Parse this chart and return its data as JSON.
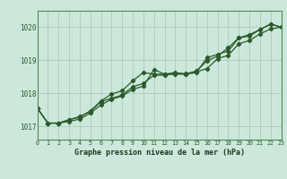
{
  "title": "Graphe pression niveau de la mer (hPa)",
  "bg_color": "#cce8dc",
  "plot_bg_color": "#cce8dc",
  "grid_color": "#aaccbb",
  "line_color": "#2a5a2a",
  "hours": [
    0,
    1,
    2,
    3,
    4,
    5,
    6,
    7,
    8,
    9,
    10,
    11,
    12,
    13,
    14,
    15,
    16,
    17,
    18,
    19,
    20,
    21,
    22,
    23
  ],
  "line1": [
    1017.55,
    1017.1,
    1017.1,
    1017.2,
    1017.3,
    1017.45,
    1017.75,
    1017.85,
    1017.95,
    1018.2,
    1018.3,
    1018.55,
    1018.55,
    1018.6,
    1018.6,
    1018.65,
    1018.75,
    1019.05,
    1019.15,
    1019.5,
    1019.6,
    1019.8,
    1019.95,
    1020.0
  ],
  "line2": [
    1017.55,
    1017.1,
    1017.1,
    1017.15,
    1017.22,
    1017.4,
    1017.65,
    1017.82,
    1017.92,
    1018.12,
    1018.22,
    1018.72,
    1018.58,
    1018.58,
    1018.58,
    1018.63,
    1019.08,
    1019.18,
    1019.28,
    1019.68,
    1019.73,
    1019.93,
    1020.1,
    1020.0
  ],
  "line3": [
    1017.55,
    1017.1,
    1017.1,
    1017.2,
    1017.28,
    1017.47,
    1017.77,
    1017.98,
    1018.08,
    1018.38,
    1018.63,
    1018.58,
    1018.58,
    1018.63,
    1018.58,
    1018.68,
    1018.98,
    1019.13,
    1019.38,
    1019.68,
    1019.78,
    1019.93,
    1020.1,
    1020.0
  ],
  "ylim_min": 1016.6,
  "ylim_max": 1020.5,
  "yticks": [
    1017,
    1018,
    1019,
    1020
  ],
  "xlim_min": 0,
  "xlim_max": 23,
  "spine_color": "#558855",
  "tick_label_color": "#2a5a2a",
  "title_color": "#1a3a1a",
  "marker_size": 2.2,
  "line_width": 0.9
}
